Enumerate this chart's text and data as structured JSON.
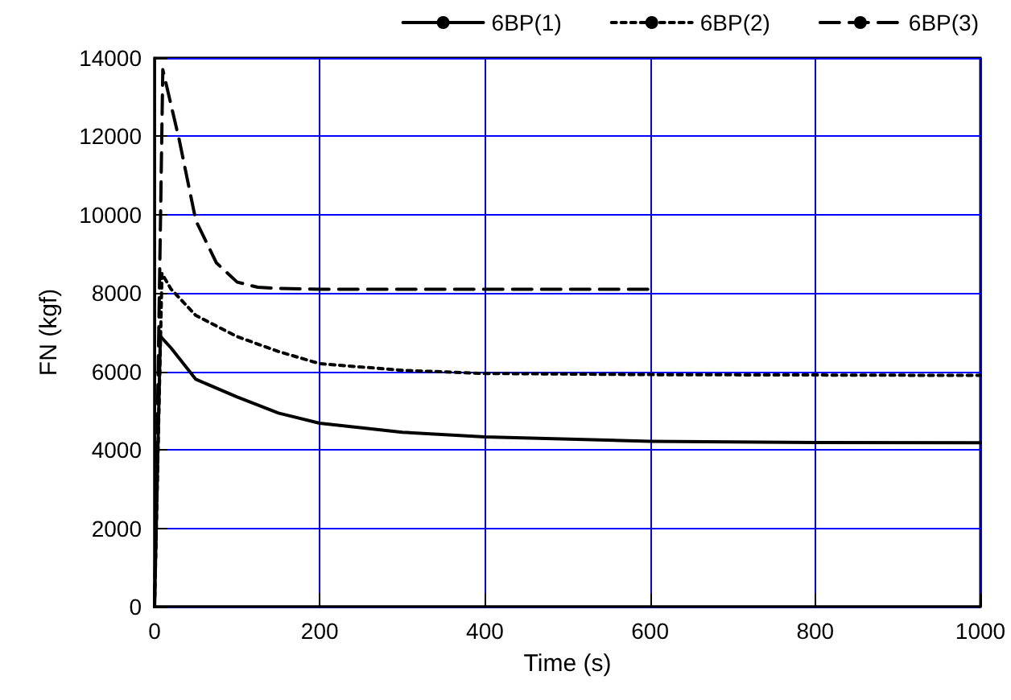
{
  "chart_data": {
    "type": "line",
    "xlabel": "Time (s)",
    "ylabel": "FN (kgf)",
    "xlim": [
      0,
      1000
    ],
    "xticks": [
      0,
      200,
      400,
      600,
      800,
      1000
    ],
    "ylim": [
      0,
      14000
    ],
    "yticks": [
      0,
      2000,
      4000,
      6000,
      8000,
      10000,
      12000,
      14000
    ],
    "grid": true,
    "legend": "top right",
    "marker": "none",
    "series": [
      {
        "name": "6BP(1)",
        "color": "#000000",
        "line_style": "solid",
        "x": [
          0,
          7,
          20,
          50,
          100,
          150,
          200,
          300,
          400,
          600,
          800,
          1000
        ],
        "values": [
          0,
          6900,
          6600,
          5800,
          5350,
          4940,
          4680,
          4450,
          4330,
          4220,
          4190,
          4180
        ]
      },
      {
        "name": "6BP(2)",
        "color": "#000000",
        "line_style": "dotted",
        "x": [
          0,
          9,
          20,
          50,
          100,
          150,
          200,
          300,
          400,
          600,
          800,
          1000
        ],
        "values": [
          0,
          8500,
          8100,
          7430,
          6890,
          6510,
          6200,
          6030,
          5950,
          5920,
          5910,
          5900
        ]
      },
      {
        "name": "6BP(3)",
        "color": "#000000",
        "line_style": "dashed",
        "x": [
          0,
          10,
          30,
          50,
          75,
          100,
          125,
          150,
          200,
          400,
          600
        ],
        "values": [
          0,
          13700,
          11900,
          9850,
          8770,
          8280,
          8150,
          8120,
          8100,
          8100,
          8100
        ]
      }
    ]
  }
}
